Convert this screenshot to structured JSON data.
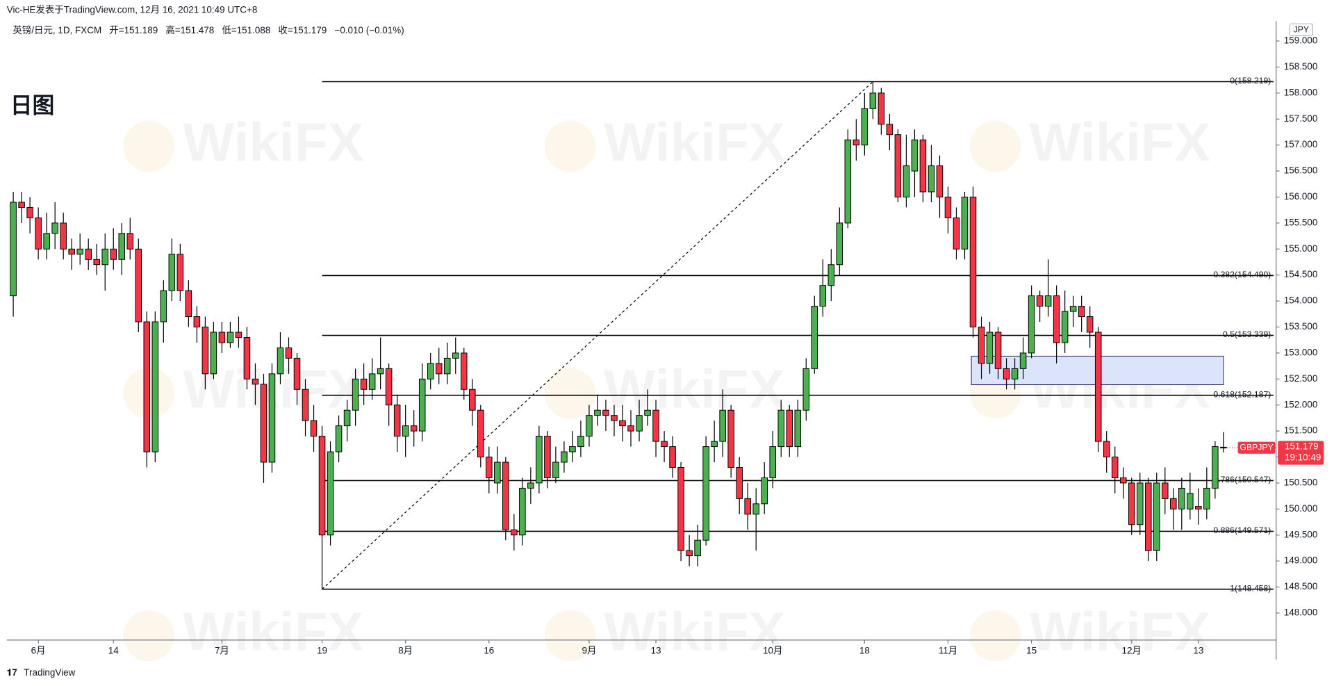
{
  "header": {
    "attribution": "Vic-HE发表于TradingView.com,  12月 16, 2021 10:49 UTC+8",
    "symbol_info": "英镑/日元, 1D, FXCM",
    "ohlc": [
      "开=151.189",
      "高=151.478",
      "低=151.088",
      "收=151.179"
    ],
    "change": "−0.010 (−0.01%)"
  },
  "footer": "TradingView",
  "watermark": "WikiFX",
  "chart_data": {
    "type": "candlestick",
    "title": "日图",
    "currency": "JPY",
    "up_color": "#4caf50",
    "down_color": "#f23645",
    "categories": [
      null,
      null,
      null,
      "6月",
      null,
      null,
      null,
      null,
      null,
      null,
      null,
      null,
      "14",
      null,
      null,
      null,
      null,
      null,
      null,
      null,
      null,
      null,
      null,
      null,
      null,
      "7月",
      null,
      null,
      null,
      null,
      null,
      null,
      null,
      null,
      null,
      null,
      null,
      "19",
      null,
      null,
      null,
      null,
      null,
      null,
      null,
      null,
      null,
      "8月",
      null,
      null,
      null,
      null,
      null,
      null,
      null,
      null,
      null,
      "16",
      null,
      null,
      null,
      null,
      null,
      null,
      null,
      null,
      null,
      null,
      null,
      "9月",
      null,
      null,
      null,
      null,
      null,
      null,
      null,
      "13",
      null,
      null,
      null,
      null,
      null,
      null,
      null,
      null,
      null,
      null,
      null,
      null,
      null,
      "10月",
      null,
      null,
      null,
      null,
      null,
      null,
      null,
      null,
      null,
      null,
      "18",
      null,
      null,
      null,
      null,
      null,
      null,
      null,
      null,
      null,
      "11月",
      null,
      null,
      null,
      null,
      null,
      null,
      null,
      null,
      null,
      "15",
      null,
      null,
      null,
      null,
      null,
      null,
      null,
      null,
      null,
      null,
      null,
      "12月",
      null,
      null,
      null,
      null,
      null,
      null,
      null,
      "13",
      null,
      null,
      null
    ],
    "open": [
      154.1,
      155.9,
      155.8,
      155.6,
      155.0,
      155.3,
      155.5,
      155.0,
      154.9,
      155.0,
      154.8,
      154.7,
      155.0,
      154.8,
      155.3,
      155.0,
      153.6,
      151.1,
      153.6,
      154.2,
      154.9,
      154.2,
      153.7,
      153.5,
      152.6,
      153.4,
      153.2,
      153.4,
      153.3,
      152.5,
      152.4,
      150.9,
      152.6,
      153.1,
      152.9,
      152.3,
      151.7,
      151.4,
      149.5,
      151.1,
      151.6,
      151.9,
      152.5,
      152.3,
      152.6,
      152.7,
      152.0,
      151.4,
      151.6,
      151.5,
      152.5,
      152.8,
      152.6,
      152.9,
      153.0,
      152.3,
      151.9,
      151.0,
      150.5,
      150.9,
      149.6,
      149.5,
      150.4,
      150.5,
      151.4,
      150.6,
      150.9,
      151.1,
      151.2,
      151.4,
      151.8,
      151.9,
      151.8,
      151.7,
      151.6,
      151.5,
      151.8,
      151.9,
      151.3,
      151.2,
      150.8,
      149.2,
      149.1,
      149.4,
      151.2,
      151.3,
      151.9,
      150.8,
      150.2,
      149.9,
      150.1,
      150.6,
      151.2,
      151.9,
      151.2,
      151.9,
      152.7,
      153.9,
      154.3,
      154.7,
      155.5,
      157.1,
      157.0,
      157.7,
      158.0,
      157.4,
      157.2,
      156.0,
      156.5,
      157.1,
      156.1,
      156.6,
      156.0,
      155.6,
      155.0,
      156.0,
      153.5,
      152.8,
      153.4,
      152.7,
      152.5,
      152.7,
      153.0,
      154.1,
      153.9,
      154.1,
      153.2,
      153.8,
      153.9,
      153.7,
      153.4,
      151.3,
      151.0,
      150.6,
      150.5,
      149.7,
      150.5,
      149.2,
      150.5,
      150.2,
      150.0,
      150.0,
      150.05,
      150.0,
      150.4,
      151.189
    ],
    "high": [
      156.1,
      156.1,
      156.0,
      155.8,
      155.7,
      155.9,
      155.7,
      155.2,
      155.3,
      155.2,
      155.1,
      155.3,
      155.4,
      155.5,
      155.6,
      155.2,
      153.8,
      153.8,
      154.4,
      155.2,
      155.1,
      154.4,
      153.9,
      153.7,
      153.6,
      153.6,
      153.6,
      153.7,
      153.5,
      152.8,
      152.6,
      152.8,
      153.4,
      153.3,
      153.0,
      152.5,
      152.0,
      151.6,
      151.3,
      151.8,
      152.1,
      152.7,
      152.8,
      152.9,
      153.3,
      152.8,
      152.2,
      152.0,
      151.9,
      152.8,
      153.0,
      153.1,
      153.2,
      153.3,
      153.1,
      152.5,
      152.0,
      151.2,
      151.2,
      151.0,
      149.9,
      150.6,
      150.8,
      151.6,
      151.5,
      151.2,
      151.3,
      151.5,
      151.7,
      152.0,
      152.2,
      152.1,
      152.0,
      152.0,
      151.9,
      152.1,
      152.3,
      152.1,
      151.5,
      151.4,
      150.9,
      149.5,
      149.7,
      151.4,
      151.7,
      152.3,
      152.0,
      151.0,
      150.5,
      150.4,
      150.9,
      151.5,
      152.1,
      152.0,
      152.1,
      152.9,
      154.1,
      154.8,
      155.0,
      155.8,
      157.3,
      157.5,
      158.0,
      158.219,
      158.1,
      157.6,
      157.3,
      157.2,
      157.3,
      157.2,
      157.0,
      156.8,
      156.2,
      155.8,
      156.1,
      156.2,
      153.7,
      153.6,
      153.5,
      152.9,
      152.9,
      153.3,
      154.3,
      154.2,
      154.8,
      154.3,
      154.2,
      154.1,
      154.1,
      153.9,
      153.5,
      151.5,
      151.2,
      150.8,
      150.6,
      150.7,
      150.6,
      150.7,
      150.8,
      150.4,
      150.6,
      150.7,
      150.4,
      150.8,
      151.3,
      151.478
    ],
    "low": [
      153.7,
      155.5,
      155.3,
      154.8,
      154.8,
      155.0,
      154.8,
      154.6,
      154.7,
      154.6,
      154.5,
      154.2,
      154.6,
      154.5,
      154.8,
      153.4,
      150.8,
      150.9,
      153.2,
      154.0,
      154.0,
      153.5,
      153.2,
      152.3,
      152.5,
      153.0,
      153.1,
      153.1,
      152.3,
      152.0,
      150.5,
      150.7,
      152.4,
      152.6,
      152.0,
      151.4,
      151.1,
      148.458,
      149.3,
      150.9,
      151.3,
      151.6,
      152.0,
      152.1,
      152.3,
      151.6,
      151.1,
      151.0,
      151.2,
      151.3,
      152.3,
      152.4,
      152.4,
      152.6,
      152.1,
      151.6,
      150.8,
      150.3,
      150.3,
      149.4,
      149.2,
      149.3,
      150.1,
      150.3,
      150.4,
      150.5,
      150.7,
      150.9,
      151.0,
      151.2,
      151.6,
      151.5,
      151.4,
      151.3,
      151.2,
      151.3,
      151.6,
      151.0,
      150.9,
      150.6,
      149.0,
      148.9,
      148.9,
      149.3,
      150.9,
      151.0,
      150.6,
      149.9,
      149.6,
      149.2,
      149.9,
      150.4,
      151.0,
      151.0,
      151.0,
      151.7,
      152.6,
      153.7,
      154.0,
      154.5,
      155.4,
      156.7,
      156.8,
      157.5,
      157.2,
      156.9,
      155.9,
      155.8,
      156.0,
      155.9,
      155.9,
      155.6,
      155.3,
      154.8,
      154.8,
      153.3,
      152.5,
      152.6,
      152.5,
      152.3,
      152.3,
      152.5,
      152.9,
      153.6,
      153.7,
      152.8,
      153.0,
      153.5,
      153.4,
      153.1,
      151.1,
      150.7,
      150.3,
      150.2,
      149.5,
      149.5,
      149.0,
      149.0,
      149.9,
      149.6,
      149.6,
      149.8,
      149.7,
      149.8,
      150.2,
      151.088
    ],
    "close": [
      155.9,
      155.8,
      155.6,
      155.0,
      155.3,
      155.5,
      155.0,
      154.9,
      155.0,
      154.8,
      154.7,
      155.0,
      154.8,
      155.3,
      155.0,
      153.6,
      151.1,
      153.6,
      154.2,
      154.9,
      154.2,
      153.7,
      153.5,
      152.6,
      153.4,
      153.2,
      153.4,
      153.3,
      152.5,
      152.4,
      150.9,
      152.6,
      153.1,
      152.9,
      152.3,
      151.7,
      151.4,
      149.5,
      151.1,
      151.6,
      151.9,
      152.5,
      152.3,
      152.6,
      152.7,
      152.0,
      151.4,
      151.6,
      151.5,
      152.5,
      152.8,
      152.6,
      152.9,
      153.0,
      152.3,
      151.9,
      151.0,
      150.6,
      150.9,
      149.6,
      149.5,
      150.4,
      150.5,
      151.4,
      150.6,
      150.9,
      151.1,
      151.2,
      151.4,
      151.8,
      151.9,
      151.8,
      151.7,
      151.6,
      151.5,
      151.8,
      151.9,
      151.3,
      151.2,
      150.8,
      149.2,
      149.1,
      149.4,
      151.2,
      151.3,
      151.9,
      150.8,
      150.2,
      149.9,
      150.1,
      150.6,
      151.2,
      151.9,
      151.2,
      151.9,
      152.7,
      153.9,
      154.3,
      154.7,
      155.5,
      157.1,
      157.0,
      157.7,
      158.0,
      157.4,
      157.2,
      156.0,
      156.6,
      157.1,
      156.1,
      156.6,
      156.0,
      155.6,
      155.0,
      156.0,
      153.5,
      152.8,
      153.4,
      152.7,
      152.5,
      152.7,
      153.0,
      154.1,
      153.9,
      154.1,
      153.2,
      153.8,
      153.9,
      153.7,
      153.4,
      151.3,
      151.0,
      150.6,
      150.5,
      149.7,
      150.5,
      149.2,
      150.5,
      150.2,
      150.0,
      150.4,
      150.3,
      150.0,
      150.4,
      151.2,
      151.179
    ],
    "ylim": [
      147.48,
      159.38
    ],
    "yticks": [
      {
        "value": 148,
        "label": "148.000"
      },
      {
        "value": 148.5,
        "label": "148.500"
      },
      {
        "value": 149,
        "label": "149.000"
      },
      {
        "value": 149.5,
        "label": "149.500"
      },
      {
        "value": 150,
        "label": "150.000"
      },
      {
        "value": 150.5,
        "label": "150.500"
      },
      {
        "value": 151,
        "label": "151.000"
      },
      {
        "value": 151.5,
        "label": "151.500"
      },
      {
        "value": 152,
        "label": "152.000"
      },
      {
        "value": 152.5,
        "label": "152.500"
      },
      {
        "value": 153,
        "label": "153.000"
      },
      {
        "value": 153.5,
        "label": "153.500"
      },
      {
        "value": 154,
        "label": "154.000"
      },
      {
        "value": 154.5,
        "label": "154.500"
      },
      {
        "value": 155,
        "label": "155.000"
      },
      {
        "value": 155.5,
        "label": "155.500"
      },
      {
        "value": 156,
        "label": "156.000"
      },
      {
        "value": 156.5,
        "label": "156.500"
      },
      {
        "value": 157,
        "label": "157.000"
      },
      {
        "value": 157.5,
        "label": "157.500"
      },
      {
        "value": 158,
        "label": "158.000"
      },
      {
        "value": 158.5,
        "label": "158.500"
      },
      {
        "value": 159,
        "label": "159.000"
      }
    ],
    "fib_levels": [
      {
        "value": 158.219,
        "label": "0(158.219)"
      },
      {
        "value": 154.49,
        "label": "0.382(154.490)"
      },
      {
        "value": 153.339,
        "label": "0.5(153.339)"
      },
      {
        "value": 152.187,
        "label": "0.618(152.187)"
      },
      {
        "value": 150.547,
        "label": "0.786(150.547)"
      },
      {
        "value": 149.571,
        "label": "0.886(149.571)"
      },
      {
        "value": 148.458,
        "label": "1(148.458)"
      }
    ],
    "zone": {
      "top": 152.94,
      "bottom": 152.39,
      "color": "#dbe4fb"
    },
    "last_price": {
      "symbol": "GBPJPY",
      "value": 151.179,
      "countdown": "19:10:49",
      "color": "#f23645"
    }
  }
}
